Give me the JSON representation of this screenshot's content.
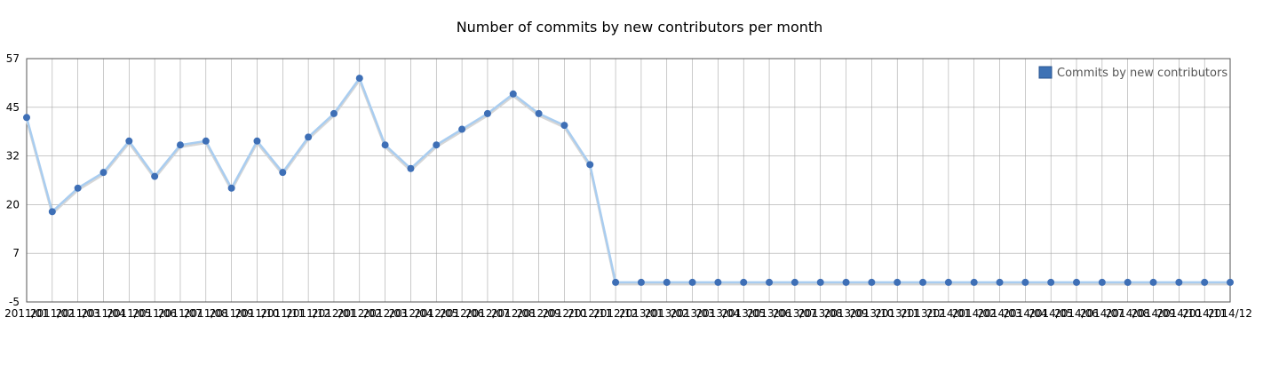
{
  "chart_data": {
    "type": "line",
    "title": "Number of commits by new contributors per month",
    "xlabel": "",
    "ylabel": "",
    "x": [
      "2011/01",
      "2011/02",
      "2011/03",
      "2011/04",
      "2011/05",
      "2011/06",
      "2011/07",
      "2011/08",
      "2011/09",
      "2011/10",
      "2011/11",
      "2011/12",
      "2012/01",
      "2012/02",
      "2012/03",
      "2012/04",
      "2012/05",
      "2012/06",
      "2012/07",
      "2012/08",
      "2012/09",
      "2012/10",
      "2012/11",
      "2012/12",
      "2013/01",
      "2013/02",
      "2013/03",
      "2013/04",
      "2013/05",
      "2013/06",
      "2013/07",
      "2013/08",
      "2013/09",
      "2013/10",
      "2013/11",
      "2013/12",
      "2014/01",
      "2014/02",
      "2014/03",
      "2014/04",
      "2014/05",
      "2014/06",
      "2014/07",
      "2014/08",
      "2014/09",
      "2014/10",
      "2014/11",
      "2014/12"
    ],
    "series": [
      {
        "name": "Commits by new contributors",
        "values": [
          42,
          18,
          24,
          28,
          36,
          27,
          35,
          36,
          24,
          36,
          28,
          37,
          43,
          52,
          35,
          29,
          35,
          39,
          43,
          48,
          43,
          40,
          30,
          0,
          0,
          0,
          0,
          0,
          0,
          0,
          0,
          0,
          0,
          0,
          0,
          0,
          0,
          0,
          0,
          0,
          0,
          0,
          0,
          0,
          0,
          0,
          0,
          0
        ]
      }
    ],
    "ylim": [
      -5,
      57
    ],
    "yticks": [
      "57",
      "45",
      "32",
      "20",
      "7",
      "-5"
    ],
    "grid": true,
    "legend_position": "top-right",
    "colors": {
      "line": "#a9cdf0",
      "line_shadow": "#d6d6d6",
      "point": "#3e6fb6",
      "legend_swatch": "#3e72b5",
      "grid": "#a8a8a8",
      "axis": "#555555"
    }
  }
}
